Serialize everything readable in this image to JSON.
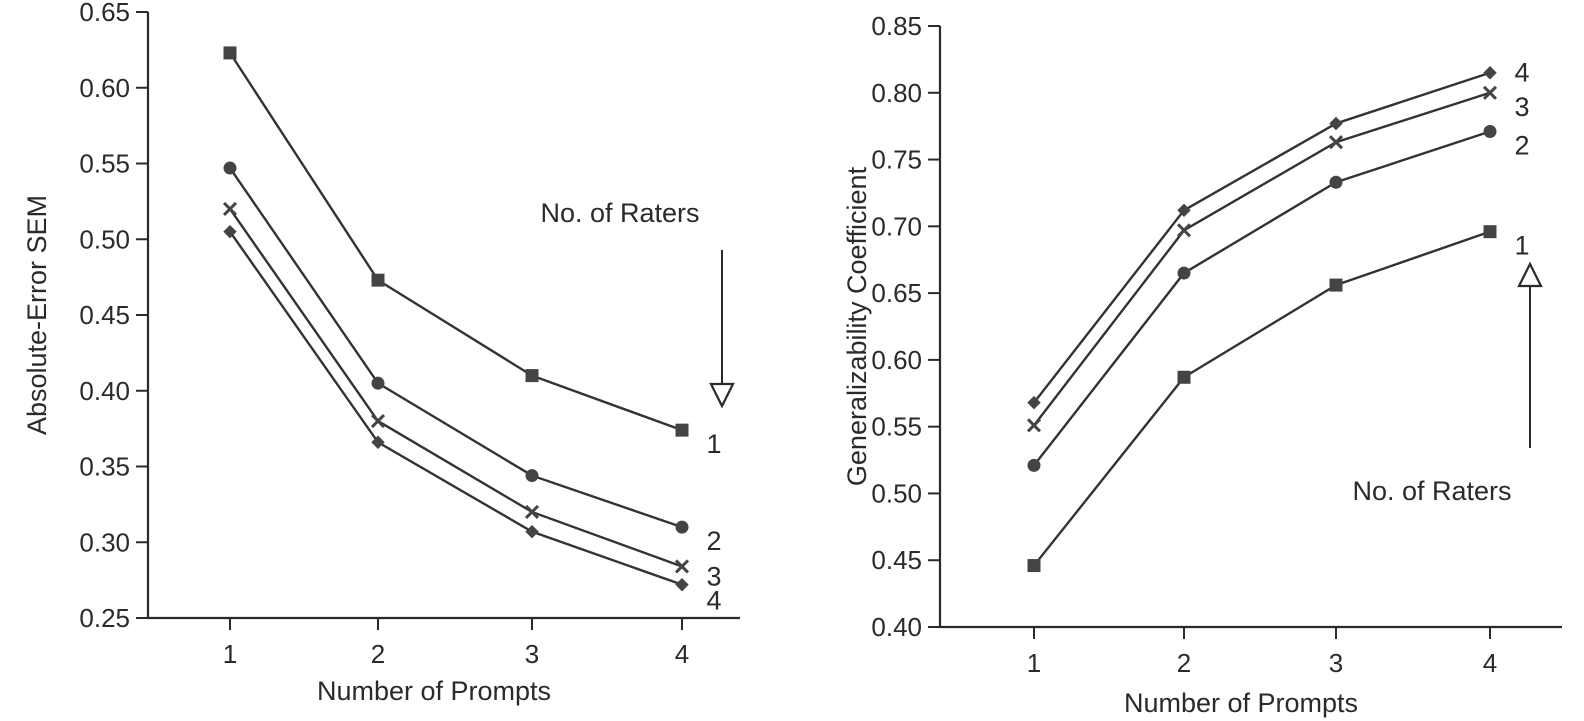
{
  "chart_data": [
    {
      "type": "line",
      "xlabel": "Number of Prompts",
      "ylabel": "Absolute-Error SEM",
      "x": [
        1,
        2,
        3,
        4
      ],
      "x_ticks": [
        "1",
        "2",
        "3",
        "4"
      ],
      "ylim": [
        0.25,
        0.65
      ],
      "y_ticks": [
        "0.25",
        "0.30",
        "0.35",
        "0.40",
        "0.45",
        "0.50",
        "0.55",
        "0.60",
        "0.65"
      ],
      "grid": false,
      "annotation": "No. of Raters",
      "series": [
        {
          "name": "1",
          "marker": "square",
          "values": [
            0.623,
            0.473,
            0.41,
            0.374
          ]
        },
        {
          "name": "2",
          "marker": "circle",
          "values": [
            0.547,
            0.405,
            0.344,
            0.31
          ]
        },
        {
          "name": "3",
          "marker": "x",
          "values": [
            0.52,
            0.38,
            0.32,
            0.284
          ]
        },
        {
          "name": "4",
          "marker": "diamond",
          "values": [
            0.505,
            0.366,
            0.307,
            0.272
          ]
        }
      ]
    },
    {
      "type": "line",
      "xlabel": "Number of Prompts",
      "ylabel": "Generalizability Coefficient",
      "x": [
        1,
        2,
        3,
        4
      ],
      "x_ticks": [
        "1",
        "2",
        "3",
        "4"
      ],
      "ylim": [
        0.4,
        0.85
      ],
      "y_ticks": [
        "0.40",
        "0.45",
        "0.50",
        "0.55",
        "0.60",
        "0.65",
        "0.70",
        "0.75",
        "0.80",
        "0.85"
      ],
      "grid": false,
      "annotation": "No. of Raters",
      "series": [
        {
          "name": "4",
          "marker": "diamond",
          "values": [
            0.568,
            0.712,
            0.777,
            0.815
          ]
        },
        {
          "name": "3",
          "marker": "x",
          "values": [
            0.551,
            0.697,
            0.763,
            0.8
          ]
        },
        {
          "name": "2",
          "marker": "circle",
          "values": [
            0.521,
            0.665,
            0.733,
            0.771
          ]
        },
        {
          "name": "1",
          "marker": "square",
          "values": [
            0.446,
            0.587,
            0.656,
            0.696
          ]
        }
      ]
    }
  ]
}
